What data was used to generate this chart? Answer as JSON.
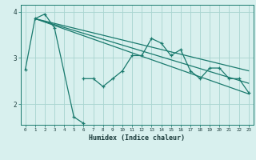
{
  "xlabel": "Humidex (Indice chaleur)",
  "x": [
    0,
    1,
    2,
    3,
    4,
    5,
    6,
    7,
    8,
    9,
    10,
    11,
    12,
    13,
    14,
    15,
    16,
    17,
    18,
    19,
    20,
    21,
    22,
    23
  ],
  "line1_x": [
    0,
    1,
    2,
    3,
    5,
    6
  ],
  "line1_y": [
    2.75,
    3.85,
    3.95,
    3.65,
    1.72,
    1.58
  ],
  "line2_x": [
    6,
    7,
    8,
    9,
    10,
    11,
    12,
    13,
    14,
    15,
    16,
    17,
    18,
    19,
    20,
    21,
    22,
    23
  ],
  "line2_y": [
    2.55,
    2.55,
    2.38,
    2.55,
    2.72,
    3.05,
    3.05,
    3.42,
    3.32,
    3.05,
    3.18,
    2.72,
    2.55,
    2.78,
    2.78,
    2.55,
    2.55,
    2.25
  ],
  "trend1_x": [
    1,
    23
  ],
  "trend1_y": [
    3.85,
    2.22
  ],
  "trend2_x": [
    1,
    23
  ],
  "trend2_y": [
    3.85,
    2.45
  ],
  "trend3_x": [
    1,
    23
  ],
  "trend3_y": [
    3.85,
    2.72
  ],
  "color": "#1a7a6e",
  "bg_color": "#d8f0ee",
  "grid_color": "#a8d4d0",
  "ylim": [
    1.55,
    4.15
  ],
  "xlim": [
    -0.5,
    23.5
  ]
}
